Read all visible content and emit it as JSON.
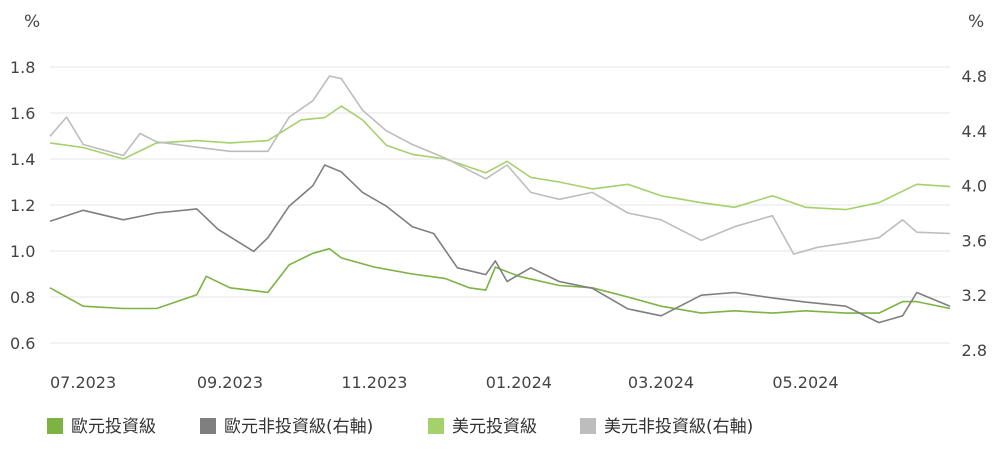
{
  "chart_data": {
    "type": "line",
    "left_axis": {
      "unit": "%",
      "ylim": [
        0.6,
        1.8
      ],
      "ticks": [
        0.6,
        0.8,
        1.0,
        1.2,
        1.4,
        1.6,
        1.8
      ],
      "tick_labels": [
        "0.6",
        "0.8",
        "1.0",
        "1.2",
        "1.4",
        "1.6",
        "1.8"
      ]
    },
    "right_axis": {
      "unit": "%",
      "ylim": [
        2.8,
        4.8
      ],
      "ticks": [
        2.8,
        3.2,
        3.6,
        4.0,
        4.4,
        4.8
      ],
      "tick_labels": [
        "2.8",
        "3.2",
        "3.6",
        "4.0",
        "4.4",
        "4.8"
      ]
    },
    "x_axis": {
      "start": "2023-07-01",
      "end": "2024-07-15",
      "ticks": [
        "2023-07-01",
        "2023-09-01",
        "2023-11-01",
        "2024-01-01",
        "2024-03-01",
        "2024-05-01"
      ],
      "tick_labels": [
        "07.2023",
        "09.2023",
        "11.2023",
        "01.2024",
        "03.2024",
        "05.2024"
      ]
    },
    "grid": true,
    "legend_position": "bottom-left",
    "series": [
      {
        "name": "歐元投資級",
        "axis": "left",
        "color": "#7cb342",
        "points": [
          [
            "2023-07-01",
            0.84
          ],
          [
            "2023-07-15",
            0.76
          ],
          [
            "2023-08-01",
            0.75
          ],
          [
            "2023-08-15",
            0.75
          ],
          [
            "2023-09-01",
            0.81
          ],
          [
            "2023-09-05",
            0.89
          ],
          [
            "2023-09-15",
            0.84
          ],
          [
            "2023-10-01",
            0.82
          ],
          [
            "2023-10-10",
            0.94
          ],
          [
            "2023-10-20",
            0.99
          ],
          [
            "2023-10-27",
            1.01
          ],
          [
            "2023-11-01",
            0.97
          ],
          [
            "2023-11-15",
            0.93
          ],
          [
            "2023-12-01",
            0.9
          ],
          [
            "2023-12-15",
            0.88
          ],
          [
            "2023-12-25",
            0.84
          ],
          [
            "2024-01-01",
            0.83
          ],
          [
            "2024-01-05",
            0.93
          ],
          [
            "2024-01-15",
            0.89
          ],
          [
            "2024-02-01",
            0.85
          ],
          [
            "2024-02-15",
            0.84
          ],
          [
            "2024-03-01",
            0.8
          ],
          [
            "2024-03-15",
            0.76
          ],
          [
            "2024-04-01",
            0.73
          ],
          [
            "2024-04-15",
            0.74
          ],
          [
            "2024-05-01",
            0.73
          ],
          [
            "2024-05-15",
            0.74
          ],
          [
            "2024-06-01",
            0.73
          ],
          [
            "2024-06-15",
            0.73
          ],
          [
            "2024-06-25",
            0.78
          ],
          [
            "2024-07-01",
            0.78
          ],
          [
            "2024-07-15",
            0.75
          ]
        ]
      },
      {
        "name": "歐元非投資級(右軸)",
        "axis": "right",
        "color": "#7f7f7f",
        "points": [
          [
            "2023-07-01",
            3.74
          ],
          [
            "2023-07-15",
            3.82
          ],
          [
            "2023-08-01",
            3.75
          ],
          [
            "2023-08-15",
            3.8
          ],
          [
            "2023-09-01",
            3.83
          ],
          [
            "2023-09-10",
            3.68
          ],
          [
            "2023-09-25",
            3.52
          ],
          [
            "2023-10-01",
            3.62
          ],
          [
            "2023-10-10",
            3.85
          ],
          [
            "2023-10-20",
            4.0
          ],
          [
            "2023-10-25",
            4.15
          ],
          [
            "2023-11-01",
            4.1
          ],
          [
            "2023-11-10",
            3.95
          ],
          [
            "2023-11-20",
            3.85
          ],
          [
            "2023-12-01",
            3.7
          ],
          [
            "2023-12-10",
            3.65
          ],
          [
            "2023-12-20",
            3.4
          ],
          [
            "2024-01-01",
            3.35
          ],
          [
            "2024-01-05",
            3.45
          ],
          [
            "2024-01-10",
            3.3
          ],
          [
            "2024-01-20",
            3.4
          ],
          [
            "2024-02-01",
            3.3
          ],
          [
            "2024-02-15",
            3.25
          ],
          [
            "2024-03-01",
            3.1
          ],
          [
            "2024-03-15",
            3.05
          ],
          [
            "2024-04-01",
            3.2
          ],
          [
            "2024-04-15",
            3.22
          ],
          [
            "2024-05-01",
            3.18
          ],
          [
            "2024-05-15",
            3.15
          ],
          [
            "2024-06-01",
            3.12
          ],
          [
            "2024-06-15",
            3.0
          ],
          [
            "2024-06-25",
            3.05
          ],
          [
            "2024-07-01",
            3.22
          ],
          [
            "2024-07-15",
            3.12
          ]
        ]
      },
      {
        "name": "美元投資級",
        "axis": "left",
        "color": "#a5d16b",
        "points": [
          [
            "2023-07-01",
            1.47
          ],
          [
            "2023-07-15",
            1.45
          ],
          [
            "2023-08-01",
            1.4
          ],
          [
            "2023-08-15",
            1.47
          ],
          [
            "2023-09-01",
            1.48
          ],
          [
            "2023-09-15",
            1.47
          ],
          [
            "2023-10-01",
            1.48
          ],
          [
            "2023-10-15",
            1.57
          ],
          [
            "2023-10-25",
            1.58
          ],
          [
            "2023-11-01",
            1.63
          ],
          [
            "2023-11-10",
            1.57
          ],
          [
            "2023-11-20",
            1.46
          ],
          [
            "2023-12-01",
            1.42
          ],
          [
            "2023-12-15",
            1.4
          ],
          [
            "2024-01-01",
            1.34
          ],
          [
            "2024-01-10",
            1.39
          ],
          [
            "2024-01-20",
            1.32
          ],
          [
            "2024-02-01",
            1.3
          ],
          [
            "2024-02-15",
            1.27
          ],
          [
            "2024-03-01",
            1.29
          ],
          [
            "2024-03-15",
            1.24
          ],
          [
            "2024-04-01",
            1.21
          ],
          [
            "2024-04-15",
            1.19
          ],
          [
            "2024-05-01",
            1.24
          ],
          [
            "2024-05-15",
            1.19
          ],
          [
            "2024-06-01",
            1.18
          ],
          [
            "2024-06-15",
            1.21
          ],
          [
            "2024-07-01",
            1.29
          ],
          [
            "2024-07-15",
            1.28
          ]
        ]
      },
      {
        "name": "美元非投資級(右軸)",
        "axis": "right",
        "color": "#bdbdbd",
        "points": [
          [
            "2023-07-01",
            4.36
          ],
          [
            "2023-07-08",
            4.5
          ],
          [
            "2023-07-15",
            4.3
          ],
          [
            "2023-08-01",
            4.22
          ],
          [
            "2023-08-08",
            4.38
          ],
          [
            "2023-08-15",
            4.32
          ],
          [
            "2023-09-01",
            4.28
          ],
          [
            "2023-09-15",
            4.25
          ],
          [
            "2023-10-01",
            4.25
          ],
          [
            "2023-10-10",
            4.5
          ],
          [
            "2023-10-20",
            4.62
          ],
          [
            "2023-10-27",
            4.8
          ],
          [
            "2023-11-01",
            4.78
          ],
          [
            "2023-11-10",
            4.55
          ],
          [
            "2023-11-20",
            4.4
          ],
          [
            "2023-12-01",
            4.3
          ],
          [
            "2023-12-15",
            4.2
          ],
          [
            "2024-01-01",
            4.05
          ],
          [
            "2024-01-10",
            4.15
          ],
          [
            "2024-01-20",
            3.95
          ],
          [
            "2024-02-01",
            3.9
          ],
          [
            "2024-02-15",
            3.95
          ],
          [
            "2024-03-01",
            3.8
          ],
          [
            "2024-03-15",
            3.75
          ],
          [
            "2024-04-01",
            3.6
          ],
          [
            "2024-04-15",
            3.7
          ],
          [
            "2024-05-01",
            3.78
          ],
          [
            "2024-05-10",
            3.5
          ],
          [
            "2024-05-20",
            3.55
          ],
          [
            "2024-06-01",
            3.58
          ],
          [
            "2024-06-15",
            3.62
          ],
          [
            "2024-06-25",
            3.75
          ],
          [
            "2024-07-01",
            3.66
          ],
          [
            "2024-07-15",
            3.65
          ]
        ]
      }
    ]
  }
}
